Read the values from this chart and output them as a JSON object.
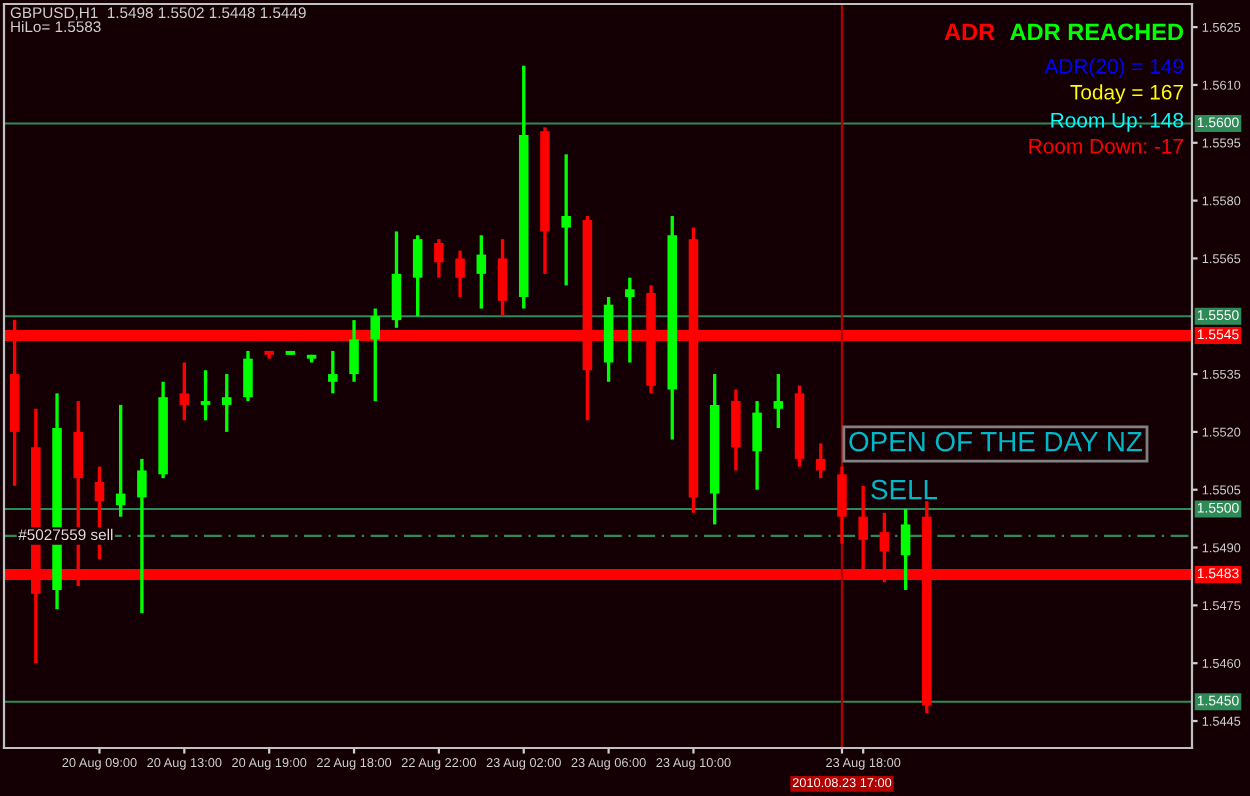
{
  "chart_data": {
    "type": "candlestick",
    "categories": [
      null,
      null,
      null,
      null,
      "20 Aug 09:00",
      null,
      null,
      null,
      "20 Aug 13:00",
      null,
      null,
      null,
      "20 Aug 19:00",
      null,
      null,
      null,
      "22 Aug 18:00",
      null,
      null,
      null,
      "22 Aug 22:00",
      null,
      null,
      null,
      "23 Aug 02:00",
      null,
      null,
      null,
      "23 Aug 06:00",
      null,
      null,
      null,
      "23 Aug 10:00",
      null,
      null,
      null,
      null,
      null,
      null,
      "2010.08.23 17:00",
      "23 Aug 18:00",
      null,
      null,
      null,
      null,
      null,
      null,
      null,
      null,
      null,
      null,
      null,
      null,
      null,
      null,
      null
    ],
    "ohlc": [
      [
        1.5535,
        1.5549,
        1.5506,
        1.552
      ],
      [
        1.5516,
        1.5526,
        1.546,
        1.5478
      ],
      [
        1.5479,
        1.553,
        1.5474,
        1.5521
      ],
      [
        1.552,
        1.5528,
        1.548,
        1.5508
      ],
      [
        1.5507,
        1.5511,
        1.5487,
        1.5502
      ],
      [
        1.5501,
        1.5527,
        1.5498,
        1.5504
      ],
      [
        1.5503,
        1.5513,
        1.5473,
        1.551
      ],
      [
        1.5509,
        1.5533,
        1.5508,
        1.5529
      ],
      [
        1.553,
        1.5538,
        1.5523,
        1.5527
      ],
      [
        1.5527,
        1.5536,
        1.5523,
        1.5528
      ],
      [
        1.5527,
        1.5535,
        1.552,
        1.5529
      ],
      [
        1.5529,
        1.5541,
        1.5528,
        1.5539
      ],
      [
        1.5541,
        1.5541,
        1.5539,
        1.554
      ],
      [
        1.554,
        1.5541,
        1.554,
        1.5541
      ],
      [
        1.5539,
        1.554,
        1.5538,
        1.554
      ],
      [
        1.5533,
        1.5541,
        1.553,
        1.5535
      ],
      [
        1.5535,
        1.5549,
        1.5533,
        1.5544
      ],
      [
        1.5544,
        1.5552,
        1.5528,
        1.555
      ],
      [
        1.5549,
        1.5572,
        1.5547,
        1.5561
      ],
      [
        1.556,
        1.5571,
        1.555,
        1.557
      ],
      [
        1.5569,
        1.557,
        1.556,
        1.5564
      ],
      [
        1.5565,
        1.5567,
        1.5555,
        1.556
      ],
      [
        1.5561,
        1.5571,
        1.5552,
        1.5566
      ],
      [
        1.5565,
        1.557,
        1.555,
        1.5554
      ],
      [
        1.5555,
        1.5615,
        1.5552,
        1.5597
      ],
      [
        1.5598,
        1.5599,
        1.5561,
        1.5572
      ],
      [
        1.5573,
        1.5592,
        1.5558,
        1.5576
      ],
      [
        1.5575,
        1.5576,
        1.5523,
        1.5536
      ],
      [
        1.5538,
        1.5555,
        1.5533,
        1.5553
      ],
      [
        1.5555,
        1.556,
        1.5538,
        1.5557
      ],
      [
        1.5556,
        1.5558,
        1.553,
        1.5532
      ],
      [
        1.5531,
        1.5576,
        1.5518,
        1.5571
      ],
      [
        1.557,
        1.5573,
        1.5499,
        1.5503
      ],
      [
        1.5504,
        1.5535,
        1.5496,
        1.5527
      ],
      [
        1.5528,
        1.5531,
        1.551,
        1.5516
      ],
      [
        1.5515,
        1.5528,
        1.5505,
        1.5525
      ],
      [
        1.5526,
        1.5535,
        1.5521,
        1.5528
      ],
      [
        1.553,
        1.5532,
        1.5511,
        1.5513
      ],
      [
        1.5513,
        1.5517,
        1.5508,
        1.551
      ],
      [
        1.5509,
        1.5511,
        1.5491,
        1.5498
      ],
      [
        1.5498,
        1.5506,
        1.5483,
        1.5492
      ],
      [
        1.5494,
        1.5499,
        1.5481,
        1.5489
      ],
      [
        1.5488,
        1.55,
        1.5479,
        1.5496
      ],
      [
        1.5498,
        1.5502,
        1.5447,
        1.5449
      ],
      null,
      null,
      null,
      null,
      null,
      null,
      null,
      null,
      null,
      null,
      null,
      null
    ],
    "colors": [
      "#ff0000",
      "#ff0000",
      "#00ff00",
      "#ff0000",
      "#ff0000",
      "#00ff00",
      "#00ff00",
      "#00ff00",
      "#ff0000",
      "#00ff00",
      "#00ff00",
      "#00ff00",
      "#ff0000",
      "#00ff00",
      "#00ff00",
      "#00ff00",
      "#00ff00",
      "#00ff00",
      "#00ff00",
      "#00ff00",
      "#ff0000",
      "#ff0000",
      "#00ff00",
      "#ff0000",
      "#00ff00",
      "#ff0000",
      "#00ff00",
      "#ff0000",
      "#00ff00",
      "#00ff00",
      "#ff0000",
      "#00ff00",
      "#ff0000",
      "#00ff00",
      "#ff0000",
      "#00ff00",
      "#00ff00",
      "#ff0000",
      "#ff0000",
      "#ff0000",
      "#ff0000",
      "#ff0000",
      "#00ff00",
      "#ff0000",
      null,
      null,
      null,
      null,
      null,
      null,
      null,
      null,
      null,
      null,
      null,
      null
    ],
    "ylim": [
      1.5438,
      1.5631
    ],
    "yticks": [
      1.5445,
      {
        "value": 1.546,
        "label": "1.5460"
      },
      1.5475,
      {
        "value": 1.549,
        "label": "1.5490"
      },
      1.5505,
      {
        "value": 1.552,
        "label": "1.5520"
      },
      1.5535,
      1.5565,
      {
        "value": 1.558,
        "label": "1.5580"
      },
      1.5595,
      {
        "value": 1.561,
        "label": "1.5610"
      },
      1.5625
    ],
    "ref_lines": [
      {
        "axis": "y",
        "value": 1.56,
        "label": "1.5600",
        "color": "#2e8b57",
        "line_style": "solid"
      },
      {
        "axis": "y",
        "value": 1.555,
        "label": "1.5550",
        "color": "#2e8b57",
        "line_style": "solid"
      },
      {
        "axis": "y",
        "value": 1.5545,
        "label": "1.5545",
        "color": "#ff0000",
        "line_style": "solid"
      },
      {
        "axis": "y",
        "value": 1.55,
        "label": "1.5500",
        "color": "#2e8b57",
        "line_style": "solid"
      },
      {
        "axis": "y",
        "value": 1.5493,
        "label": "#5027559 sell",
        "color": "#2e8b57",
        "line_style": "dashed"
      },
      {
        "axis": "y",
        "value": 1.5483,
        "label": "1.5483",
        "color": "#ff0000",
        "line_style": "solid"
      },
      {
        "axis": "y",
        "value": 1.545,
        "label": "1.5450",
        "color": "#2e8b57",
        "line_style": "solid"
      },
      {
        "axis": "x",
        "value": "2010.08.23 17:00",
        "color": "#b00000",
        "line_style": "solid"
      }
    ],
    "annotations": [
      "GBPUSD,H1  1.5498 1.5502 1.5448 1.5449",
      "HiLo= 1.5583",
      "ADR",
      "ADR REACHED",
      "ADR(20) = 149",
      "Today = 167",
      "Room Up: 148",
      "Room Down: -17",
      "OPEN OF THE DAY NZ",
      "SELL"
    ],
    "grid": false,
    "legend": false
  }
}
